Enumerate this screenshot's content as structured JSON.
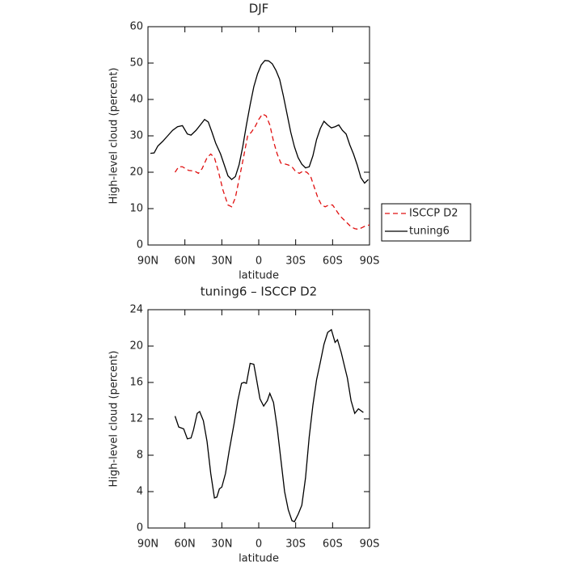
{
  "chart_data": [
    {
      "type": "line",
      "title": "DJF",
      "xlabel": "latitude",
      "ylabel": "High-level cloud (percent)",
      "xlim": [
        90,
        -90
      ],
      "ylim": [
        0,
        60
      ],
      "xticks": [
        {
          "value": 90,
          "label": "90N"
        },
        {
          "value": 60,
          "label": "60N"
        },
        {
          "value": 30,
          "label": "30N"
        },
        0,
        {
          "value": -30,
          "label": "30S"
        },
        {
          "value": -60,
          "label": "60S"
        },
        {
          "value": -90,
          "label": "90S"
        }
      ],
      "yticks": [
        0,
        10,
        20,
        30,
        40,
        50,
        60
      ],
      "legend": "right",
      "series": [
        {
          "name": "ISCCP D2",
          "color": "#e01010",
          "dash": true,
          "x": [
            68,
            65,
            62,
            57,
            52,
            49,
            46,
            42,
            39,
            36,
            33,
            29,
            25,
            22,
            19,
            16,
            13,
            9,
            6,
            3,
            0,
            -3,
            -6,
            -9,
            -12,
            -15,
            -18,
            -21,
            -24,
            -27,
            -30,
            -33,
            -36,
            -39,
            -42,
            -45,
            -48,
            -51,
            -54,
            -57,
            -60,
            -63,
            -66,
            -69,
            -72,
            -75,
            -78,
            -81,
            -84,
            -87,
            -90
          ],
          "values": [
            20,
            21.5,
            21.5,
            20.5,
            20.3,
            19.7,
            21,
            24,
            25,
            24,
            20.5,
            15,
            11,
            10.5,
            13,
            18,
            23,
            30,
            31,
            32.5,
            34.5,
            36,
            35.5,
            33,
            28.5,
            25,
            22.5,
            22.3,
            22,
            21.5,
            20.2,
            19.7,
            20.3,
            20,
            19,
            16,
            13,
            11,
            10.5,
            11,
            11,
            9.5,
            8,
            7,
            6,
            5,
            4.5,
            4.3,
            4.8,
            5.3,
            5.5
          ]
        },
        {
          "name": "tuning6",
          "color": "#000000",
          "dash": false,
          "x": [
            88,
            85,
            82,
            78,
            74,
            70,
            66,
            62,
            58,
            55,
            51,
            47,
            44,
            41,
            38,
            35,
            31,
            28,
            25,
            22,
            19,
            16,
            13,
            10,
            7,
            4,
            1,
            -2,
            -5,
            -8,
            -11,
            -14,
            -17,
            -20,
            -23,
            -26,
            -29,
            -32,
            -35,
            -38,
            -41,
            -44,
            -47,
            -50,
            -53,
            -56,
            -59,
            -62,
            -65,
            -68,
            -71,
            -74,
            -77,
            -80,
            -83,
            -86,
            -89
          ],
          "values": [
            25.2,
            25.3,
            27.2,
            28.5,
            30,
            31.5,
            32.5,
            32.8,
            30.5,
            30.2,
            31.5,
            33.2,
            34.5,
            33.8,
            31,
            28,
            25,
            22,
            19,
            18,
            18.8,
            22,
            27,
            33,
            38.5,
            43.5,
            47,
            49.5,
            50.7,
            50.6,
            49.8,
            48,
            45.5,
            41,
            36,
            31,
            27,
            24,
            22.2,
            21.2,
            21.5,
            24.5,
            29,
            32,
            34,
            33,
            32.2,
            32.5,
            33,
            31.5,
            30.5,
            27.5,
            25,
            22,
            18.5,
            17,
            18
          ]
        }
      ]
    },
    {
      "type": "line",
      "title": "tuning6 – ISCCP D2",
      "xlabel": "latitude",
      "ylabel": "High-level cloud (percent)",
      "xlim": [
        90,
        -90
      ],
      "ylim": [
        0,
        24
      ],
      "xticks": [
        {
          "value": 90,
          "label": "90N"
        },
        {
          "value": 60,
          "label": "60N"
        },
        {
          "value": 30,
          "label": "30N"
        },
        0,
        {
          "value": -30,
          "label": "30S"
        },
        {
          "value": -60,
          "label": "60S"
        },
        {
          "value": -90,
          "label": "90S"
        }
      ],
      "yticks": [
        0,
        4,
        8,
        12,
        16,
        20,
        24
      ],
      "series": [
        {
          "color": "#000000",
          "dash": false,
          "x": [
            68,
            65,
            61,
            58,
            55,
            53,
            50,
            48,
            45,
            42,
            39,
            36,
            34,
            32,
            30,
            27,
            24,
            20,
            17,
            14,
            12,
            10,
            7,
            4,
            2,
            -1,
            -4,
            -7,
            -9,
            -12,
            -15,
            -18,
            -21,
            -24,
            -27,
            -29,
            -32,
            -35,
            -38,
            -41,
            -44,
            -47,
            -50,
            -53,
            -56,
            -59,
            -62,
            -64,
            -67,
            -70,
            -72,
            -75,
            -78,
            -81,
            -85
          ],
          "values": [
            12.3,
            11.1,
            10.9,
            9.8,
            9.9,
            10.8,
            12.6,
            12.8,
            11.8,
            9.5,
            6,
            3.3,
            3.4,
            4.3,
            4.5,
            6,
            8.5,
            11.5,
            14,
            15.9,
            16,
            15.9,
            18.1,
            18,
            16.5,
            14.2,
            13.4,
            14,
            14.8,
            13.8,
            11,
            7.5,
            4,
            2,
            0.8,
            0.7,
            1.5,
            2.5,
            5.5,
            10,
            13.5,
            16.3,
            18.2,
            20.2,
            21.5,
            21.8,
            20.4,
            20.7,
            19.3,
            17.6,
            16.5,
            14,
            12.6,
            13.1,
            12.7
          ]
        }
      ]
    }
  ]
}
